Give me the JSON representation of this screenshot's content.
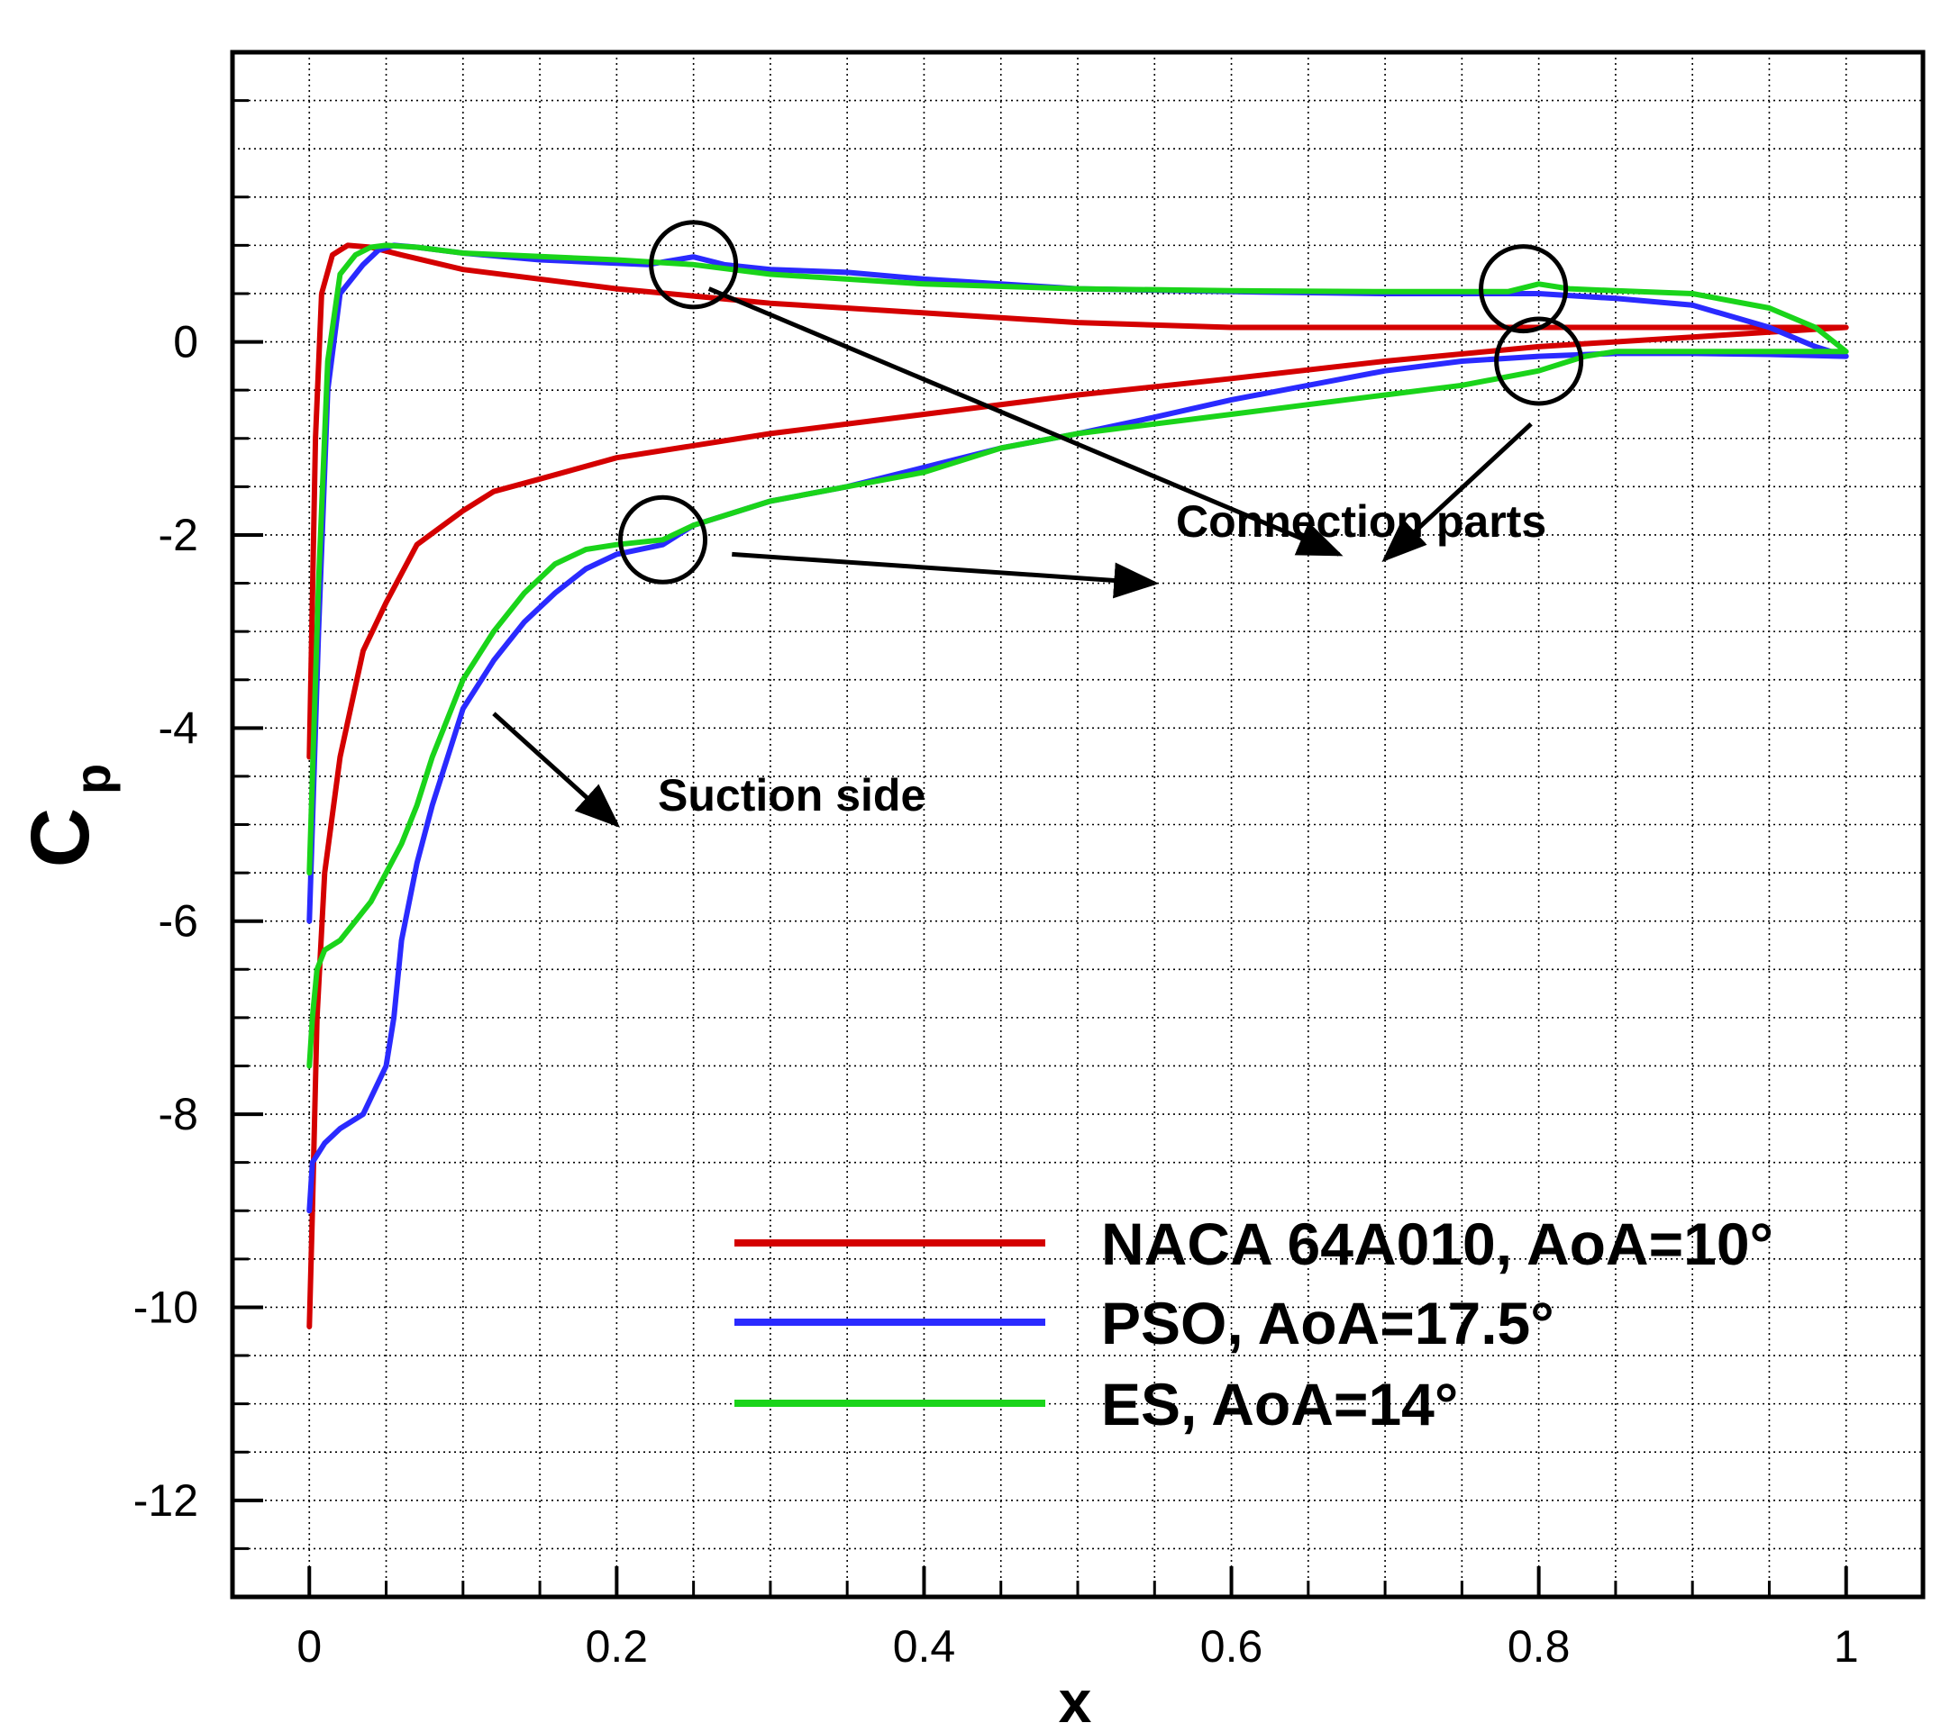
{
  "chart_data": {
    "type": "line",
    "title": "",
    "xlabel": "x",
    "ylabel": {
      "main": "C",
      "sub": "p"
    },
    "xlim": [
      -0.05,
      1.05
    ],
    "ylim": [
      -13.0,
      3.0
    ],
    "grid": true,
    "legend_position": "bottom-right",
    "x_ticks": [
      {
        "value": 0,
        "label": "0"
      },
      {
        "value": 0.2,
        "label": "0.2"
      },
      {
        "value": 0.4,
        "label": "0.4"
      },
      {
        "value": 0.6,
        "label": "0.6"
      },
      {
        "value": 0.8,
        "label": "0.8"
      },
      {
        "value": 1,
        "label": "1"
      }
    ],
    "y_ticks": [
      {
        "value": 0,
        "label": "0"
      },
      {
        "value": -2,
        "label": "-2"
      },
      {
        "value": -4,
        "label": "-4"
      },
      {
        "value": -6,
        "label": "-6"
      },
      {
        "value": -8,
        "label": "-8"
      },
      {
        "value": -10,
        "label": "-10"
      },
      {
        "value": -12,
        "label": "-12"
      }
    ],
    "series": [
      {
        "name": "NACA 64A010, AoA=10°",
        "color": "#d40000",
        "points": [
          [
            0.0,
            -10.2
          ],
          [
            0.002,
            -9.0
          ],
          [
            0.005,
            -7.0
          ],
          [
            0.01,
            -5.5
          ],
          [
            0.02,
            -4.3
          ],
          [
            0.035,
            -3.2
          ],
          [
            0.05,
            -2.7
          ],
          [
            0.07,
            -2.1
          ],
          [
            0.1,
            -1.75
          ],
          [
            0.12,
            -1.55
          ],
          [
            0.15,
            -1.42
          ],
          [
            0.2,
            -1.2
          ],
          [
            0.3,
            -0.95
          ],
          [
            0.4,
            -0.75
          ],
          [
            0.5,
            -0.55
          ],
          [
            0.6,
            -0.38
          ],
          [
            0.7,
            -0.2
          ],
          [
            0.8,
            -0.05
          ],
          [
            0.9,
            0.05
          ],
          [
            0.95,
            0.1
          ],
          [
            1.0,
            0.15
          ],
          [
            0.95,
            0.15
          ],
          [
            0.9,
            0.15
          ],
          [
            0.8,
            0.15
          ],
          [
            0.6,
            0.15
          ],
          [
            0.5,
            0.2
          ],
          [
            0.4,
            0.3
          ],
          [
            0.3,
            0.4
          ],
          [
            0.2,
            0.55
          ],
          [
            0.1,
            0.75
          ],
          [
            0.06,
            0.9
          ],
          [
            0.04,
            0.98
          ],
          [
            0.025,
            1.0
          ],
          [
            0.015,
            0.9
          ],
          [
            0.008,
            0.5
          ],
          [
            0.004,
            -1.0
          ],
          [
            0.0,
            -4.3
          ]
        ]
      },
      {
        "name": "PSO, AoA=17.5°",
        "color": "#2a2aff",
        "points": [
          [
            0.0,
            -9.0
          ],
          [
            0.002,
            -8.5
          ],
          [
            0.01,
            -8.3
          ],
          [
            0.02,
            -8.15
          ],
          [
            0.035,
            -8.0
          ],
          [
            0.05,
            -7.5
          ],
          [
            0.055,
            -7.0
          ],
          [
            0.06,
            -6.2
          ],
          [
            0.07,
            -5.4
          ],
          [
            0.08,
            -4.8
          ],
          [
            0.09,
            -4.3
          ],
          [
            0.1,
            -3.8
          ],
          [
            0.12,
            -3.3
          ],
          [
            0.14,
            -2.9
          ],
          [
            0.16,
            -2.6
          ],
          [
            0.18,
            -2.35
          ],
          [
            0.2,
            -2.2
          ],
          [
            0.23,
            -2.1
          ],
          [
            0.25,
            -1.9
          ],
          [
            0.28,
            -1.75
          ],
          [
            0.3,
            -1.65
          ],
          [
            0.35,
            -1.5
          ],
          [
            0.4,
            -1.3
          ],
          [
            0.45,
            -1.1
          ],
          [
            0.5,
            -0.95
          ],
          [
            0.55,
            -0.78
          ],
          [
            0.6,
            -0.6
          ],
          [
            0.65,
            -0.45
          ],
          [
            0.7,
            -0.3
          ],
          [
            0.75,
            -0.2
          ],
          [
            0.8,
            -0.15
          ],
          [
            0.85,
            -0.12
          ],
          [
            0.9,
            -0.12
          ],
          [
            0.95,
            -0.13
          ],
          [
            1.0,
            -0.15
          ],
          [
            0.98,
            -0.05
          ],
          [
            0.95,
            0.15
          ],
          [
            0.9,
            0.38
          ],
          [
            0.85,
            0.45
          ],
          [
            0.8,
            0.5
          ],
          [
            0.7,
            0.5
          ],
          [
            0.6,
            0.52
          ],
          [
            0.5,
            0.55
          ],
          [
            0.4,
            0.65
          ],
          [
            0.35,
            0.72
          ],
          [
            0.3,
            0.75
          ],
          [
            0.27,
            0.8
          ],
          [
            0.25,
            0.88
          ],
          [
            0.22,
            0.8
          ],
          [
            0.15,
            0.85
          ],
          [
            0.1,
            0.92
          ],
          [
            0.07,
            0.98
          ],
          [
            0.055,
            1.0
          ],
          [
            0.045,
            0.95
          ],
          [
            0.035,
            0.8
          ],
          [
            0.02,
            0.5
          ],
          [
            0.012,
            -0.5
          ],
          [
            0.006,
            -3.0
          ],
          [
            0.0,
            -6.0
          ]
        ]
      },
      {
        "name": "ES, AoA=14°",
        "color": "#1ad41a",
        "points": [
          [
            0.0,
            -7.5
          ],
          [
            0.002,
            -7.0
          ],
          [
            0.005,
            -6.5
          ],
          [
            0.01,
            -6.3
          ],
          [
            0.02,
            -6.2
          ],
          [
            0.03,
            -6.0
          ],
          [
            0.04,
            -5.8
          ],
          [
            0.05,
            -5.5
          ],
          [
            0.06,
            -5.2
          ],
          [
            0.07,
            -4.8
          ],
          [
            0.08,
            -4.3
          ],
          [
            0.09,
            -3.9
          ],
          [
            0.1,
            -3.5
          ],
          [
            0.12,
            -3.0
          ],
          [
            0.14,
            -2.6
          ],
          [
            0.16,
            -2.3
          ],
          [
            0.18,
            -2.15
          ],
          [
            0.2,
            -2.1
          ],
          [
            0.23,
            -2.05
          ],
          [
            0.25,
            -1.9
          ],
          [
            0.28,
            -1.75
          ],
          [
            0.3,
            -1.65
          ],
          [
            0.35,
            -1.5
          ],
          [
            0.4,
            -1.35
          ],
          [
            0.45,
            -1.1
          ],
          [
            0.5,
            -0.95
          ],
          [
            0.55,
            -0.85
          ],
          [
            0.6,
            -0.75
          ],
          [
            0.65,
            -0.65
          ],
          [
            0.7,
            -0.55
          ],
          [
            0.75,
            -0.45
          ],
          [
            0.8,
            -0.3
          ],
          [
            0.83,
            -0.15
          ],
          [
            0.85,
            -0.1
          ],
          [
            0.9,
            -0.1
          ],
          [
            0.95,
            -0.1
          ],
          [
            1.0,
            -0.1
          ],
          [
            0.98,
            0.15
          ],
          [
            0.95,
            0.35
          ],
          [
            0.9,
            0.5
          ],
          [
            0.85,
            0.53
          ],
          [
            0.82,
            0.55
          ],
          [
            0.8,
            0.6
          ],
          [
            0.78,
            0.52
          ],
          [
            0.7,
            0.52
          ],
          [
            0.6,
            0.53
          ],
          [
            0.5,
            0.55
          ],
          [
            0.4,
            0.6
          ],
          [
            0.3,
            0.7
          ],
          [
            0.25,
            0.8
          ],
          [
            0.2,
            0.85
          ],
          [
            0.1,
            0.92
          ],
          [
            0.07,
            0.98
          ],
          [
            0.05,
            1.0
          ],
          [
            0.04,
            0.98
          ],
          [
            0.03,
            0.9
          ],
          [
            0.02,
            0.7
          ],
          [
            0.012,
            -0.2
          ],
          [
            0.006,
            -2.5
          ],
          [
            0.0,
            -5.5
          ]
        ]
      }
    ],
    "annotations": {
      "connection_label": "Connection parts",
      "suction_label": "Suction side",
      "circles": [
        {
          "x": 0.25,
          "y": 0.8
        },
        {
          "x": 0.79,
          "y": 0.55
        },
        {
          "x": 0.8,
          "y": -0.2
        },
        {
          "x": 0.23,
          "y": -2.05
        }
      ],
      "arrows": [
        {
          "from": [
            0.26,
            0.55
          ],
          "to": [
            0.67,
            -2.2
          ]
        },
        {
          "from": [
            0.795,
            -0.85
          ],
          "to": [
            0.7,
            -2.25
          ]
        },
        {
          "from": [
            0.275,
            -2.2
          ],
          "to": [
            0.55,
            -2.5
          ]
        },
        {
          "from": [
            0.12,
            -3.85
          ],
          "to": [
            0.2,
            -5.0
          ]
        }
      ]
    }
  }
}
